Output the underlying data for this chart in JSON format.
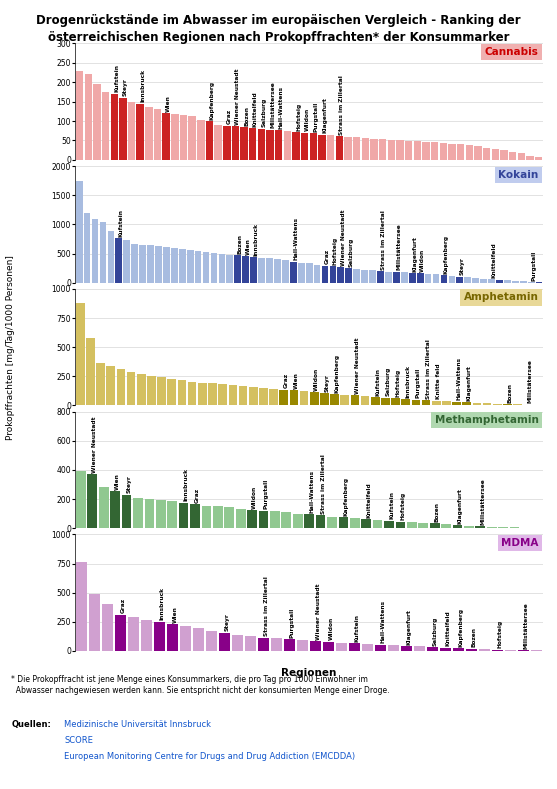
{
  "title": "Drogenrückstände im Abwasser im europäischen Vergleich - Ranking der\nösterreichischen Regionen nach Prokopffrachten* der Konsummarker",
  "ylabel": "Prokopffrachten [mg/Tag/1000 Personen]",
  "xlabel": "Regionen",
  "footnote": "* Die Prokopffracht ist jene Menge eines Konsummarkers, die pro Tag pro 1000 Einwohner im\n  Abwasser nachgewiesen werden kann. Sie entspricht nicht der konsumierten Menge einer Droge.",
  "sources_label": "Quellen:",
  "sources": [
    "Medizinische Universität Innsbruck",
    "SCORE",
    "European Monitoring Centre for Drugs and Drug Addiction (EMCDDA)"
  ],
  "panels": [
    {
      "drug": "Cannabis",
      "label_color": "#cc0000",
      "bg_color": "#f0b0b0",
      "bar_color_default": "#f0a8a8",
      "bar_color_highlight": "#cc2222",
      "ylim": [
        0,
        300
      ],
      "yticks": [
        0,
        50,
        100,
        150,
        200,
        250,
        300
      ],
      "values": [
        230,
        220,
        195,
        175,
        170,
        160,
        150,
        145,
        135,
        130,
        120,
        118,
        115,
        112,
        102,
        100,
        90,
        88,
        86,
        84,
        82,
        80,
        78,
        76,
        74,
        72,
        70,
        68,
        65,
        63,
        61,
        60,
        58,
        56,
        55,
        53,
        52,
        50,
        49,
        48,
        47,
        46,
        44,
        42,
        40,
        37,
        35,
        30,
        28,
        25,
        20,
        18,
        10,
        8
      ],
      "labels": [
        "",
        "",
        "",
        "",
        "Kufstein",
        "Steyr",
        "",
        "Innsbruck",
        "",
        "",
        "Wien",
        "",
        "",
        "",
        "",
        "Kapfenberg",
        "",
        "Graz",
        "Wiener Neustadt",
        "Bozen",
        "Knittelfeld",
        "Salzburg",
        "Millstättersee",
        "Hall-Wattens",
        "",
        "Hofsteig",
        "Wildon",
        "Purgstall",
        "Klagenfurt",
        "",
        "Strass im Zillertal",
        "",
        "",
        "",
        "",
        "",
        "",
        "",
        "",
        "",
        "",
        "",
        "",
        "",
        "",
        "",
        "",
        "",
        "",
        "",
        "",
        "",
        "",
        ""
      ],
      "highlight_indices": [
        4,
        5,
        7,
        10,
        15,
        17,
        18,
        19,
        20,
        21,
        22,
        23,
        25,
        26,
        27,
        28,
        30
      ]
    },
    {
      "drug": "Kokain",
      "label_color": "#334499",
      "bg_color": "#c0ccee",
      "bar_color_default": "#a8bce0",
      "bar_color_highlight": "#334499",
      "ylim": [
        0,
        2000
      ],
      "yticks": [
        0,
        500,
        1000,
        1500,
        2000
      ],
      "values": [
        1750,
        1200,
        1100,
        1040,
        890,
        760,
        740,
        660,
        650,
        640,
        630,
        610,
        590,
        570,
        555,
        540,
        520,
        510,
        490,
        480,
        470,
        450,
        440,
        430,
        415,
        400,
        380,
        360,
        345,
        330,
        310,
        290,
        280,
        265,
        250,
        235,
        220,
        210,
        200,
        190,
        185,
        175,
        165,
        160,
        150,
        140,
        130,
        115,
        100,
        90,
        80,
        70,
        60,
        50,
        40,
        30,
        20,
        10,
        5
      ],
      "labels": [
        "",
        "",
        "",
        "",
        "",
        "Kufstein",
        "",
        "",
        "",
        "",
        "",
        "",
        "",
        "",
        "",
        "",
        "",
        "",
        "",
        "",
        "Bozen",
        "Wien",
        "Innsbruck",
        "",
        "",
        "",
        "",
        "Hall-Wattens",
        "",
        "",
        "",
        "Graz",
        "Hofsteig",
        "Wiener Neustadt",
        "Salzburg",
        "",
        "",
        "",
        "Strass im Zillertal",
        "",
        "Millstättersee",
        "",
        "Klagenfurt",
        "Wildon",
        "",
        "",
        "Kapfenberg",
        "",
        "Steyr",
        "",
        "",
        "",
        "Knittelfeld",
        "",
        "",
        "",
        "",
        "Purgstall"
      ],
      "highlight_indices": [
        5,
        20,
        21,
        22,
        27,
        31,
        32,
        33,
        34,
        38,
        40,
        42,
        43,
        46,
        48,
        53,
        58
      ]
    },
    {
      "drug": "Amphetamin",
      "label_color": "#776600",
      "bg_color": "#e8d898",
      "bar_color_default": "#d4c060",
      "bar_color_highlight": "#998800",
      "ylim": [
        0,
        1000
      ],
      "yticks": [
        0,
        250,
        500,
        750,
        1000
      ],
      "values": [
        880,
        580,
        360,
        335,
        310,
        290,
        270,
        255,
        240,
        225,
        215,
        205,
        195,
        188,
        180,
        172,
        165,
        158,
        150,
        142,
        135,
        128,
        120,
        112,
        105,
        98,
        92,
        85,
        78,
        72,
        66,
        60,
        55,
        50,
        45,
        40,
        35,
        32,
        28,
        22,
        18,
        14,
        10,
        8,
        6,
        4
      ],
      "labels": [
        "",
        "",
        "",
        "",
        "",
        "",
        "",
        "",
        "",
        "",
        "",
        "",
        "",
        "",
        "",
        "",
        "",
        "",
        "",
        "",
        "Graz",
        "Wien",
        "",
        "Wildon",
        "Steyr",
        "Kapfenberg",
        "",
        "Wiener Neustadt",
        "",
        "Kufstein",
        "Salzburg",
        "Hofsteig",
        "Innsbruck",
        "Purgstall",
        "Strass im Zillertal",
        "Knitte feld",
        "",
        "Hall-Wattens",
        "Klagenfurt",
        "",
        "",
        "",
        "Bozen",
        "",
        "Millstätersee",
        ""
      ],
      "highlight_indices": [
        20,
        21,
        23,
        24,
        25,
        27,
        29,
        30,
        31,
        32,
        33,
        34,
        37,
        38,
        42,
        44
      ]
    },
    {
      "drug": "Methamphetamin",
      "label_color": "#336633",
      "bg_color": "#b0d8b0",
      "bar_color_default": "#90c890",
      "bar_color_highlight": "#336633",
      "ylim": [
        0,
        800
      ],
      "yticks": [
        0,
        200,
        400,
        600,
        800
      ],
      "values": [
        390,
        370,
        280,
        255,
        230,
        210,
        200,
        190,
        185,
        175,
        165,
        155,
        150,
        145,
        135,
        125,
        120,
        115,
        108,
        100,
        95,
        88,
        80,
        75,
        68,
        62,
        55,
        50,
        45,
        40,
        38,
        32,
        28,
        22,
        18,
        14,
        10,
        8,
        6,
        4,
        2
      ],
      "labels": [
        "",
        "Wiener Neustadt",
        "",
        "Wien",
        "Steyr",
        "",
        "",
        "",
        "",
        "Innsbruck",
        "Graz",
        "",
        "",
        "",
        "",
        "Wildon",
        "Purgstall",
        "",
        "",
        "",
        "Hall-Wattens",
        "Strass im Zillertal",
        "",
        "Kapfenberg",
        "",
        "Knittelfeld",
        "",
        "Kufstein",
        "Hofsteig",
        "",
        "",
        "Bozen",
        "",
        "Klagenfurt",
        "",
        "Millstättersee",
        "",
        "",
        "",
        "",
        ""
      ],
      "highlight_indices": [
        1,
        3,
        4,
        9,
        10,
        15,
        16,
        20,
        21,
        23,
        25,
        27,
        28,
        31,
        33,
        35
      ]
    },
    {
      "drug": "MDMA",
      "label_color": "#880088",
      "bg_color": "#e0b8e8",
      "bar_color_default": "#d0a0d0",
      "bar_color_highlight": "#880088",
      "ylim": [
        0,
        1000
      ],
      "yticks": [
        0,
        250,
        500,
        750,
        1000
      ],
      "values": [
        760,
        490,
        400,
        310,
        290,
        265,
        250,
        230,
        210,
        195,
        175,
        155,
        140,
        125,
        115,
        108,
        100,
        92,
        85,
        78,
        72,
        65,
        60,
        55,
        48,
        43,
        38,
        32,
        26,
        22,
        18,
        14,
        10,
        8,
        6,
        4
      ],
      "labels": [
        "",
        "",
        "",
        "Graz",
        "",
        "",
        "Innsbruck",
        "Wien",
        "",
        "",
        "",
        "Steyr",
        "",
        "",
        "Strass im Zillertal",
        "",
        "Purgstall",
        "",
        "Wiener Neustadt",
        "Wildon",
        "",
        "Kufstein",
        "",
        "Hall-Wattens",
        "",
        "Klagenfurt",
        "",
        "Salzburg",
        "Knittelfeld",
        "Kapfenberg",
        "Bozen",
        "",
        "Hofsteig",
        "",
        "Millstättersee",
        ""
      ],
      "highlight_indices": [
        3,
        6,
        7,
        11,
        14,
        16,
        18,
        19,
        21,
        23,
        25,
        27,
        28,
        29,
        30,
        32,
        34
      ]
    }
  ]
}
